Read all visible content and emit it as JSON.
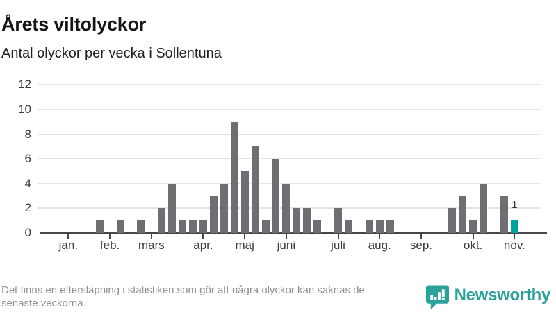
{
  "header": {
    "title": "Årets viltolyckor",
    "subtitle": "Antal olyckor per vecka i Sollentuna"
  },
  "chart_data": {
    "type": "bar",
    "title": "Årets viltolyckor",
    "subtitle": "Antal olyckor per vecka i Sollentuna",
    "x_unit": "vecka",
    "weeks": 46,
    "values": [
      0,
      0,
      0,
      0,
      0,
      1,
      0,
      1,
      0,
      1,
      0,
      2,
      4,
      1,
      1,
      1,
      3,
      4,
      9,
      5,
      7,
      1,
      6,
      4,
      2,
      2,
      1,
      0,
      2,
      1,
      0,
      1,
      1,
      1,
      0,
      0,
      0,
      0,
      0,
      2,
      3,
      1,
      4,
      0,
      3,
      1
    ],
    "highlight_week": 46,
    "highlight_value_label": "1",
    "y_ticks": [
      0,
      2,
      4,
      6,
      8,
      10,
      12
    ],
    "ylim": [
      0,
      12
    ],
    "grid": true,
    "month_ticks": [
      {
        "label": "jan.",
        "week": 3
      },
      {
        "label": "feb.",
        "week": 7
      },
      {
        "label": "mars",
        "week": 11
      },
      {
        "label": "apr.",
        "week": 16
      },
      {
        "label": "maj",
        "week": 20
      },
      {
        "label": "juni",
        "week": 24
      },
      {
        "label": "juli",
        "week": 29
      },
      {
        "label": "aug.",
        "week": 33
      },
      {
        "label": "sep.",
        "week": 37
      },
      {
        "label": "okt.",
        "week": 42
      },
      {
        "label": "nov.",
        "week": 46
      }
    ],
    "colors": {
      "bar": "#6e6e73",
      "highlight": "#00a29c",
      "grid": "#e4e4e4",
      "axis": "#47474b",
      "tick_label": "#3c3c3c"
    }
  },
  "footer": {
    "note": "Det finns en eftersläpning i statistiken som gör att några olyckor kan saknas de\nsenaste veckorna.",
    "brand": "Newsworthy",
    "brand_color": "#2ba19c",
    "brand_icon": "newsworthy-speech-bubble-barchart-icon"
  }
}
